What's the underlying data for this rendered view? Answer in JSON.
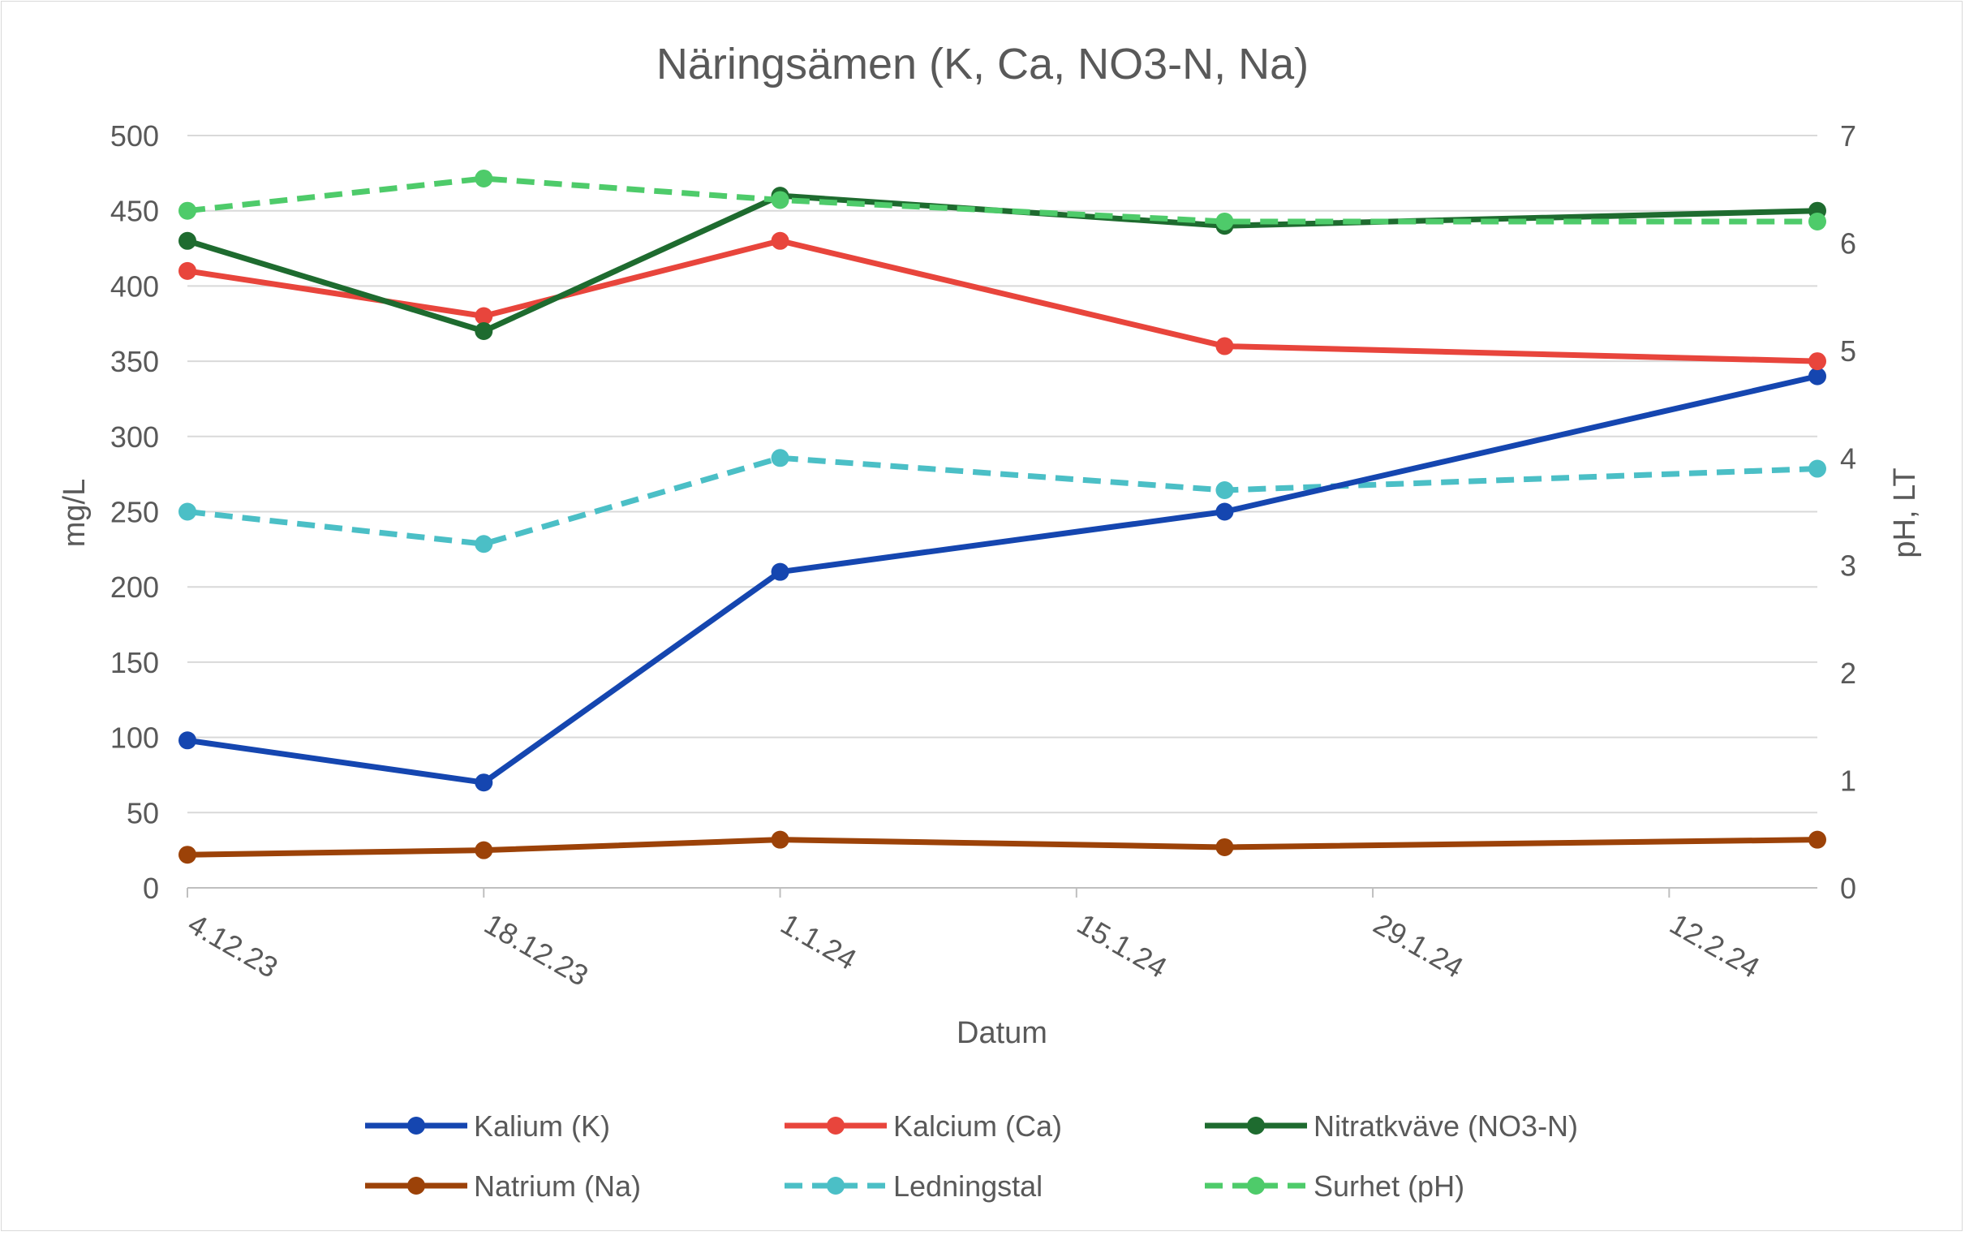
{
  "chart_data": {
    "type": "line",
    "title": "Näringsämen (K, Ca, NO3-N, Na)",
    "xlabel": "Datum",
    "ylabel": "mg/L",
    "y2label": "pH, LT",
    "x_tick_labels": [
      "4.12.23",
      "18.12.23",
      "1.1.24",
      "15.1.24",
      "29.1.24",
      "12.2.24"
    ],
    "x_dates": [
      "2023-12-04",
      "2023-12-18",
      "2024-01-01",
      "2024-01-15",
      "2024-01-29",
      "2024-02-12"
    ],
    "x": [
      "2023-12-04",
      "2023-12-18",
      "2024-01-01",
      "2024-01-22",
      "2024-02-19"
    ],
    "xlim": [
      "2023-12-04",
      "2024-02-19"
    ],
    "ylim": [
      0,
      500
    ],
    "y_ticks": [
      "0",
      "50",
      "100",
      "150",
      "200",
      "250",
      "300",
      "350",
      "400",
      "450",
      "500"
    ],
    "y2lim": [
      0,
      7
    ],
    "y2_ticks": [
      "0",
      "1",
      "2",
      "3",
      "4",
      "5",
      "6",
      "7"
    ],
    "grid": true,
    "legend_position": "bottom",
    "series": [
      {
        "name": "Kalium (K)",
        "axis": "left",
        "color": "#1546b0",
        "dashed": false,
        "values": [
          98,
          70,
          210,
          250,
          340
        ]
      },
      {
        "name": "Kalcium (Ca)",
        "axis": "left",
        "color": "#e8453c",
        "dashed": false,
        "values": [
          410,
          380,
          430,
          360,
          350
        ]
      },
      {
        "name": "Nitratkväve (NO3-N)",
        "axis": "left",
        "color": "#1e6b2f",
        "dashed": false,
        "values": [
          430,
          370,
          460,
          440,
          450
        ]
      },
      {
        "name": "Natrium (Na)",
        "axis": "left",
        "color": "#9c4208",
        "dashed": false,
        "values": [
          22,
          25,
          32,
          27,
          32
        ]
      },
      {
        "name": "Ledningstal",
        "axis": "right",
        "color": "#4bbfc6",
        "dashed": true,
        "values": [
          3.5,
          3.2,
          4.0,
          3.7,
          3.9
        ]
      },
      {
        "name": "Surhet (pH)",
        "axis": "right",
        "color": "#4ecb6a",
        "dashed": true,
        "values": [
          6.3,
          6.6,
          6.4,
          6.2,
          6.2
        ]
      }
    ]
  }
}
